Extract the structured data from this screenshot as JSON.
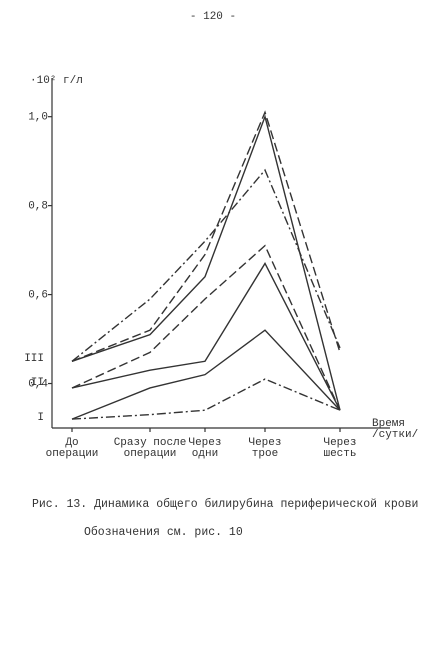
{
  "page_number": "- 120 -",
  "chart_data": {
    "type": "line",
    "y_label": "·10² г/л",
    "x_label": "Время\n/сутки/",
    "categories": [
      "До\nоперации",
      "Сразу после\nоперации",
      "Через\nодни",
      "Через\nтрое",
      "Через\nшесть"
    ],
    "ylim": [
      0.3,
      1.06
    ],
    "yticks": [
      {
        "value": 1.0,
        "label": "1,0"
      },
      {
        "value": 0.8,
        "label": "0,8"
      },
      {
        "value": 0.6,
        "label": "0,6"
      },
      {
        "value": 0.4,
        "label": "0,4"
      }
    ],
    "annotations": [
      "III",
      "II",
      "I"
    ],
    "series": [
      {
        "color": "#333",
        "dash": "solid",
        "values": [
          0.32,
          0.39,
          0.42,
          0.52,
          0.34
        ]
      },
      {
        "color": "#333",
        "dash": "dashdot",
        "values": [
          0.32,
          0.33,
          0.34,
          0.41,
          0.34
        ]
      },
      {
        "color": "#333",
        "dash": "solid",
        "values": [
          0.39,
          0.43,
          0.45,
          0.67,
          0.34
        ]
      },
      {
        "color": "#333",
        "dash": "dashed",
        "values": [
          0.39,
          0.47,
          0.59,
          0.71,
          0.34
        ]
      },
      {
        "color": "#333",
        "dash": "solid",
        "values": [
          0.45,
          0.51,
          0.64,
          1.0,
          0.34
        ]
      },
      {
        "color": "#333",
        "dash": "dashdot",
        "values": [
          0.45,
          0.59,
          0.72,
          0.88,
          0.48
        ]
      },
      {
        "color": "#333",
        "dash": "dashed",
        "values": [
          0.45,
          0.52,
          0.69,
          1.01,
          0.47
        ]
      }
    ]
  },
  "caption": "Рис. 13. Динамика общего билирубина периферической крови",
  "note": "Обозначения см. рис. 10"
}
